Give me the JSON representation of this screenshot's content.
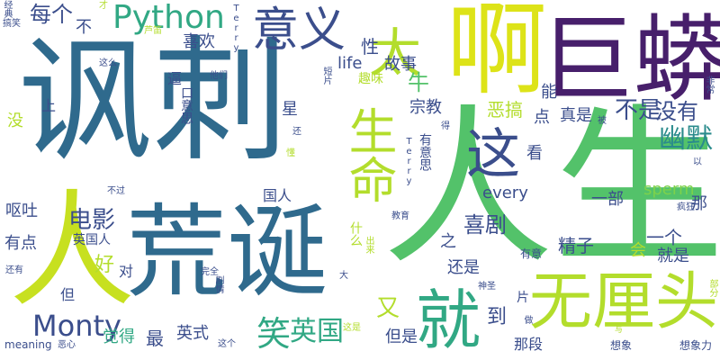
{
  "palette": {
    "deep_purple": "#471f6b",
    "indigo": "#3b4e8c",
    "steel_blue": "#2f6a8d",
    "teal": "#2a8b8c",
    "sea_green": "#31a884",
    "green": "#53c26a",
    "lime_green": "#7dd24b",
    "yellow_green": "#b3dd2c",
    "yellow": "#dde318"
  },
  "words": [
    {
      "text": "讽刺",
      "color": "#2f6a8d"
    },
    {
      "text": "人生",
      "color": "#53c26a"
    },
    {
      "text": "荒诞",
      "color": "#2f6a8d"
    },
    {
      "text": "巨蟒",
      "color": "#471f6b"
    },
    {
      "text": "啊",
      "color": "#dde318"
    },
    {
      "text": "人",
      "color": "#c7e020"
    },
    {
      "text": "无厘头",
      "color": "#b3dd2c"
    },
    {
      "text": "就",
      "color": "#31a884"
    },
    {
      "text": "生命",
      "color": "#b3dd2c"
    },
    {
      "text": "这",
      "color": "#3b4e8c"
    },
    {
      "text": "太",
      "color": "#b3dd2c"
    },
    {
      "text": "意义",
      "color": "#3b4e8c"
    },
    {
      "text": "Python",
      "color": "#31a884"
    },
    {
      "text": "Monty",
      "color": "#3b4e8c"
    },
    {
      "text": "笑",
      "color": "#31a884"
    },
    {
      "text": "英国",
      "color": "#31a884"
    },
    {
      "text": "幽默",
      "color": "#2a8b8c"
    },
    {
      "text": "喜剧",
      "color": "#3b4e8c"
    },
    {
      "text": "不是",
      "color": "#3b4e8c"
    },
    {
      "text": "没有",
      "color": "#3b4e8c"
    },
    {
      "text": "电影",
      "color": "#3b4e8c"
    },
    {
      "text": "每个",
      "color": "#3b4e8c"
    },
    {
      "text": "life",
      "color": "#3b4e8c"
    },
    {
      "text": "故事",
      "color": "#3b4e8c"
    },
    {
      "text": "喜欢",
      "color": "#3b4e8c"
    },
    {
      "text": "不",
      "color": "#3b4e8c"
    },
    {
      "text": "性",
      "color": "#3b4e8c"
    },
    {
      "text": "趣味",
      "color": "#b3dd2c"
    },
    {
      "text": "牛",
      "color": "#53c26a"
    },
    {
      "text": "恶搞",
      "color": "#b3dd2c"
    },
    {
      "text": "觉得",
      "color": "#31a884"
    },
    {
      "text": "能",
      "color": "#3b4e8c"
    },
    {
      "text": "真是",
      "color": "#3b4e8c"
    },
    {
      "text": "星",
      "color": "#3b4e8c"
    },
    {
      "text": "宗教",
      "color": "#3b4e8c"
    },
    {
      "text": "点",
      "color": "#3b4e8c"
    },
    {
      "text": "看",
      "color": "#3b4e8c"
    },
    {
      "text": "有意思",
      "color": "#3b4e8c"
    },
    {
      "text": "sperm",
      "color": "#7dd24b"
    },
    {
      "text": "every",
      "color": "#3b4e8c"
    },
    {
      "text": "一部",
      "color": "#3b4e8c"
    },
    {
      "text": "那",
      "color": "#3b4e8c"
    },
    {
      "text": "呕吐",
      "color": "#3b4e8c"
    },
    {
      "text": "有点",
      "color": "#3b4e8c"
    },
    {
      "text": "英国人",
      "color": "#3b4e8c"
    },
    {
      "text": "好",
      "color": "#b3dd2c"
    },
    {
      "text": "对",
      "color": "#3b4e8c"
    },
    {
      "text": "什么",
      "color": "#b3dd2c"
    },
    {
      "text": "又",
      "color": "#b3dd2c"
    },
    {
      "text": "之",
      "color": "#3b4e8c"
    },
    {
      "text": "还是",
      "color": "#3b4e8c"
    },
    {
      "text": "精子",
      "color": "#3b4e8c"
    },
    {
      "text": "一个",
      "color": "#3b4e8c"
    },
    {
      "text": "就是",
      "color": "#3b4e8c"
    },
    {
      "text": "会",
      "color": "#b3dd2c"
    },
    {
      "text": "到",
      "color": "#3b4e8c"
    },
    {
      "text": "但是",
      "color": "#3b4e8c"
    },
    {
      "text": "那段",
      "color": "#3b4e8c"
    },
    {
      "text": "片",
      "color": "#3b4e8c"
    },
    {
      "text": "最",
      "color": "#3b4e8c"
    },
    {
      "text": "英式",
      "color": "#3b4e8c"
    },
    {
      "text": "但",
      "color": "#3b4e8c"
    },
    {
      "text": "没",
      "color": "#b3dd2c"
    },
    {
      "text": "上",
      "color": "#3b4e8c"
    },
    {
      "text": "国人",
      "color": "#3b4e8c"
    },
    {
      "text": "逼",
      "color": "#3b4e8c"
    },
    {
      "text": "口意思",
      "color": "#3b4e8c"
    },
    {
      "text": "meaning",
      "color": "#3b4e8c"
    },
    {
      "text": "恶心",
      "color": "#3b4e8c"
    },
    {
      "text": "这个",
      "color": "#3b4e8c"
    },
    {
      "text": "想象",
      "color": "#3b4e8c"
    },
    {
      "text": "想象力",
      "color": "#3b4e8c"
    },
    {
      "text": "有意",
      "color": "#3b4e8c"
    },
    {
      "text": "神圣",
      "color": "#3b4e8c"
    },
    {
      "text": "做",
      "color": "#3b4e8c"
    },
    {
      "text": "写",
      "color": "#b3dd2c"
    },
    {
      "text": "完全",
      "color": "#3b4e8c"
    },
    {
      "text": "还有",
      "color": "#3b4e8c"
    },
    {
      "text": "Terry",
      "color": "#3b4e8c"
    },
    {
      "text": "Terry",
      "color": "#3b4e8c"
    },
    {
      "text": "搞笑",
      "color": "#3b4e8c"
    },
    {
      "text": "经典",
      "color": "#3b4e8c"
    },
    {
      "text": "才",
      "color": "#b3dd2c"
    },
    {
      "text": "芦笛",
      "color": "#b3dd2c"
    },
    {
      "text": "这么",
      "color": "#3b4e8c"
    },
    {
      "text": "他们",
      "color": "#3b4e8c"
    },
    {
      "text": "短片",
      "color": "#3b4e8c"
    },
    {
      "text": "非常",
      "color": "#3b4e8c"
    },
    {
      "text": "被",
      "color": "#3b4e8c"
    },
    {
      "text": "以",
      "color": "#3b4e8c"
    },
    {
      "text": "疯狂",
      "color": "#3b4e8c"
    },
    {
      "text": "教育",
      "color": "#3b4e8c"
    },
    {
      "text": "不过",
      "color": "#3b4e8c"
    },
    {
      "text": "懂",
      "color": "#b3dd2c"
    },
    {
      "text": "还",
      "color": "#3b4e8c"
    },
    {
      "text": "出来",
      "color": "#b3dd2c"
    },
    {
      "text": "大",
      "color": "#3b4e8c"
    },
    {
      "text": "这是",
      "color": "#b3dd2c"
    },
    {
      "text": "剧情",
      "color": "#3b4e8c"
    },
    {
      "text": "得",
      "color": "#3b4e8c"
    },
    {
      "text": "部分",
      "color": "#b3dd2c"
    }
  ]
}
